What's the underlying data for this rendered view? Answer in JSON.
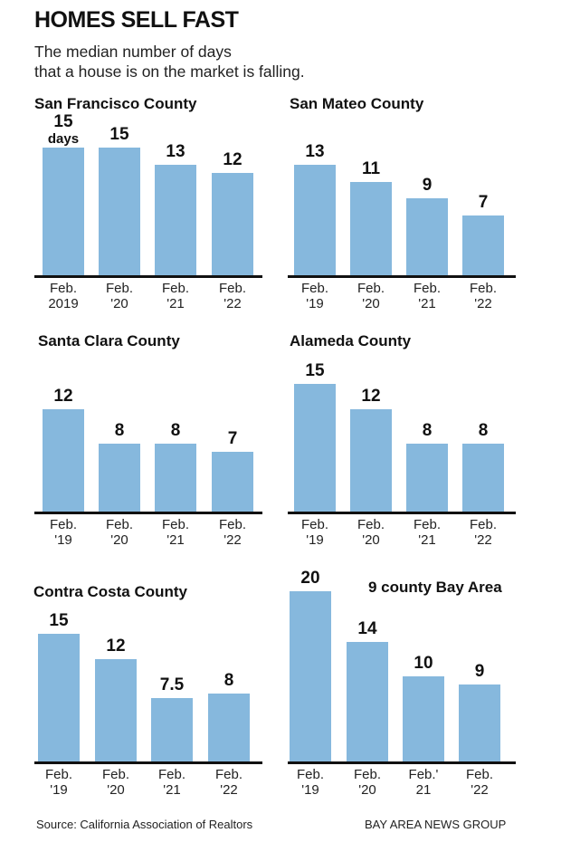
{
  "title": "HOMES SELL FAST",
  "subtitle_lines": [
    "The median number of days",
    "that a house is on the market is falling."
  ],
  "source": "Source: California Association of Realtors",
  "credit": "BAY AREA NEWS GROUP",
  "bar_color": "#86b8dd",
  "chart_data": [
    {
      "type": "bar",
      "title": "San Francisco County",
      "categories": [
        "Feb.\n2019",
        "Feb.\n'20",
        "Feb.\n'21",
        "Feb.\n'22"
      ],
      "values": [
        15,
        15,
        13,
        12
      ],
      "unit_label": "days",
      "ylim": [
        0,
        20
      ]
    },
    {
      "type": "bar",
      "title": "San Mateo County",
      "categories": [
        "Feb.\n'19",
        "Feb.\n'20",
        "Feb.\n'21",
        "Feb.\n'22"
      ],
      "values": [
        13,
        11,
        9,
        7
      ],
      "ylim": [
        0,
        20
      ]
    },
    {
      "type": "bar",
      "title": "Santa Clara County",
      "categories": [
        "Feb.\n'19",
        "Feb.\n'20",
        "Feb.\n'21",
        "Feb.\n'22"
      ],
      "values": [
        12,
        8,
        8,
        7
      ],
      "ylim": [
        0,
        20
      ]
    },
    {
      "type": "bar",
      "title": "Alameda County",
      "categories": [
        "Feb.\n'19",
        "Feb.\n'20",
        "Feb.\n'21",
        "Feb.\n'22"
      ],
      "values": [
        15,
        12,
        8,
        8
      ],
      "ylim": [
        0,
        20
      ]
    },
    {
      "type": "bar",
      "title": "Contra Costa County",
      "categories": [
        "Feb.\n'19",
        "Feb.\n'20",
        "Feb.\n'21",
        "Feb.\n'22"
      ],
      "values": [
        15,
        12,
        7.5,
        8
      ],
      "ylim": [
        0,
        20
      ]
    },
    {
      "type": "bar",
      "title": "9 county Bay Area",
      "categories": [
        "Feb.\n'19",
        "Feb.\n'20",
        "Feb.'\n21",
        "Feb.\n'22"
      ],
      "values": [
        20,
        14,
        10,
        9
      ],
      "ylim": [
        0,
        20
      ]
    }
  ]
}
